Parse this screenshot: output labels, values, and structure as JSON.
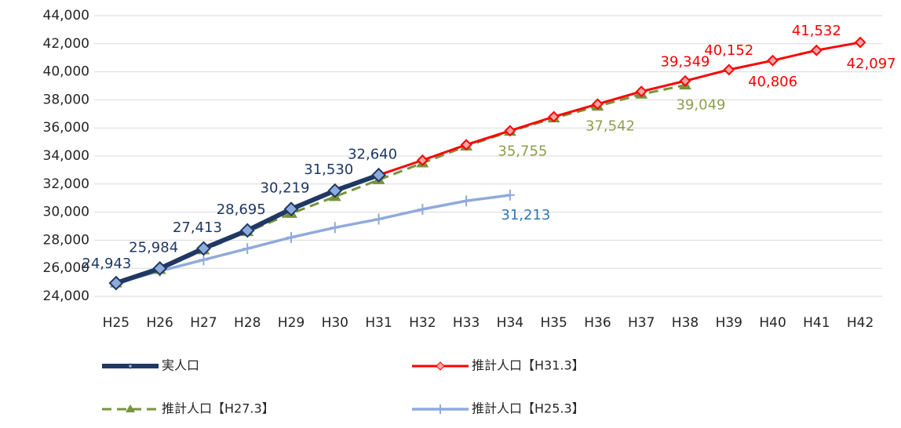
{
  "chart_data": {
    "type": "line",
    "categories": [
      "H25",
      "H26",
      "H27",
      "H28",
      "H29",
      "H30",
      "H31",
      "H32",
      "H33",
      "H34",
      "H35",
      "H36",
      "H37",
      "H38",
      "H39",
      "H40",
      "H41",
      "H42"
    ],
    "ylim": [
      24000,
      44000
    ],
    "yticks": [
      {
        "value": 24000,
        "label": "24,000"
      },
      {
        "value": 26000,
        "label": "26,000"
      },
      {
        "value": 28000,
        "label": "28,000"
      },
      {
        "value": 30000,
        "label": "30,000"
      },
      {
        "value": 32000,
        "label": "32,000"
      },
      {
        "value": 34000,
        "label": "34,000"
      },
      {
        "value": 36000,
        "label": "36,000"
      },
      {
        "value": 38000,
        "label": "38,000"
      },
      {
        "value": 40000,
        "label": "40,000"
      },
      {
        "value": 42000,
        "label": "42,000"
      },
      {
        "value": 44000,
        "label": "44,000"
      }
    ],
    "grid": true,
    "legend": "bottom",
    "series": [
      {
        "name": "推計人口【H25.3】",
        "color": "#8faadc",
        "marker": "plus",
        "dashed": false,
        "label_color": "#2e75b6",
        "values": [
          24943,
          25800,
          26600,
          27400,
          28200,
          28900,
          29500,
          30200,
          30800,
          31213,
          null,
          null,
          null,
          null,
          null,
          null,
          null,
          null
        ],
        "value_labels": [
          null,
          null,
          null,
          null,
          null,
          null,
          null,
          null,
          null,
          "31,213",
          null,
          null,
          null,
          null,
          null,
          null,
          null,
          null
        ]
      },
      {
        "name": "推計人口【H27.3】",
        "color": "#77933c",
        "marker": "triangle",
        "dashed": true,
        "label_color": "#8ea04f",
        "values": [
          24943,
          25900,
          27300,
          28600,
          29900,
          31100,
          32300,
          33500,
          34700,
          35755,
          36700,
          37542,
          38400,
          39049,
          null,
          null,
          null,
          null
        ],
        "value_labels": [
          null,
          null,
          null,
          null,
          null,
          null,
          null,
          null,
          null,
          "35,755",
          null,
          "37,542",
          null,
          "39,049",
          null,
          null,
          null,
          null
        ]
      },
      {
        "name": "推計人口【H31.3】",
        "color": "#ff0000",
        "marker": "diamond",
        "dashed": false,
        "label_color": "#ff0000",
        "values": [
          null,
          null,
          null,
          null,
          null,
          null,
          32640,
          33700,
          34800,
          35800,
          36800,
          37700,
          38600,
          39349,
          40152,
          40806,
          41532,
          42097
        ],
        "value_labels": [
          null,
          null,
          null,
          null,
          null,
          null,
          null,
          null,
          null,
          null,
          null,
          null,
          null,
          "39,349",
          "40,152",
          "40,806",
          "41,532",
          "42,097"
        ]
      },
      {
        "name": "実人口",
        "color": "#1f3864",
        "marker": "diamond",
        "dashed": false,
        "label_color": "#1f3864",
        "values": [
          24943,
          25984,
          27413,
          28695,
          30219,
          31530,
          32640,
          null,
          null,
          null,
          null,
          null,
          null,
          null,
          null,
          null,
          null,
          null
        ],
        "value_labels": [
          "24,943",
          "25,984",
          "27,413",
          "28,695",
          "30,219",
          "31,530",
          "32,640",
          null,
          null,
          null,
          null,
          null,
          null,
          null,
          null,
          null,
          null,
          null
        ]
      }
    ]
  }
}
